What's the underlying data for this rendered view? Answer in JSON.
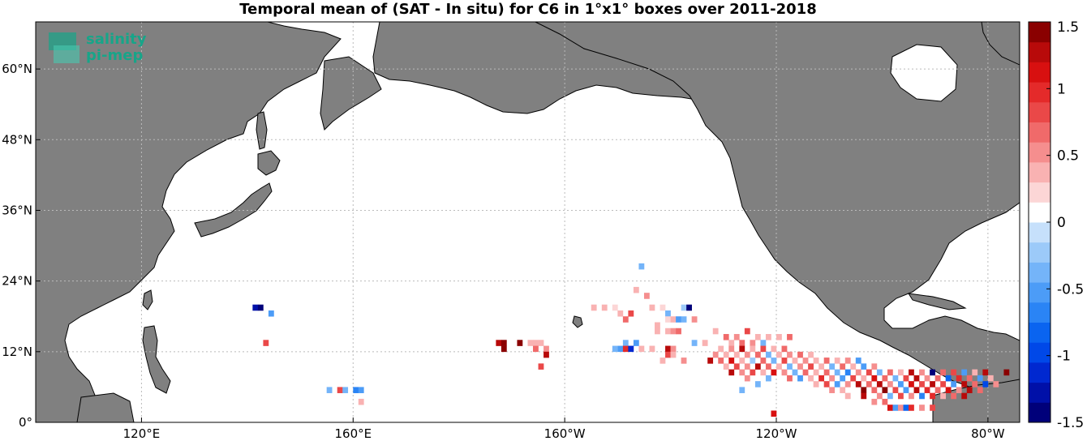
{
  "chart_data": {
    "type": "heatmap",
    "title": "Temporal mean of (SAT - In situ) for C6 in 1°x1° boxes over 2011-2018",
    "xlabel": "",
    "ylabel": "",
    "lon_range": [
      100,
      286
    ],
    "lat_range": [
      0,
      68
    ],
    "x_ticks": [
      {
        "lon": 120,
        "label": "120°E"
      },
      {
        "lon": 160,
        "label": "160°E"
      },
      {
        "lon": 200,
        "label": "160°W"
      },
      {
        "lon": 240,
        "label": "120°W"
      },
      {
        "lon": 280,
        "label": "80°W"
      }
    ],
    "y_ticks": [
      {
        "lat": 0,
        "label": "0°"
      },
      {
        "lat": 12,
        "label": "12°N"
      },
      {
        "lat": 24,
        "label": "24°N"
      },
      {
        "lat": 36,
        "label": "36°N"
      },
      {
        "lat": 48,
        "label": "48°N"
      },
      {
        "lat": 60,
        "label": "60°N"
      }
    ],
    "grid": true,
    "colorbar": {
      "min": -1.5,
      "max": 1.5,
      "levels": 30,
      "ticks": [
        "1.5",
        "1",
        "0.5",
        "0",
        "-0.5",
        "-1",
        "-1.5"
      ],
      "tick_values": [
        1.5,
        1,
        0.5,
        0,
        -0.5,
        -1,
        -1.5
      ],
      "colors": [
        "#00007a",
        "#0010a8",
        "#0028d0",
        "#0048e8",
        "#0a64f0",
        "#2a84f5",
        "#4c9cf7",
        "#74b4f9",
        "#9ccaf9",
        "#c6e0fb",
        "#ffffff",
        "#fcd6d6",
        "#f9b2b2",
        "#f58e8e",
        "#f06a6a",
        "#ea4848",
        "#e42a2a",
        "#d81010",
        "#b80a0a",
        "#8a0000"
      ]
    },
    "cells": [
      {
        "lon": 141,
        "lat": 19,
        "value": -1.3
      },
      {
        "lon": 142,
        "lat": 19,
        "value": -1.4
      },
      {
        "lon": 144,
        "lat": 18,
        "value": -0.6
      },
      {
        "lon": 143,
        "lat": 13,
        "value": 0.9
      },
      {
        "lon": 155,
        "lat": 5,
        "value": -0.4
      },
      {
        "lon": 157,
        "lat": 5,
        "value": 0.8
      },
      {
        "lon": 158,
        "lat": 5,
        "value": -0.3
      },
      {
        "lon": 160,
        "lat": 5,
        "value": -0.7
      },
      {
        "lon": 161,
        "lat": 5,
        "value": -0.6
      },
      {
        "lon": 161,
        "lat": 3,
        "value": 0.4
      },
      {
        "lon": 187,
        "lat": 13,
        "value": 1.2
      },
      {
        "lon": 188,
        "lat": 13,
        "value": 1.4
      },
      {
        "lon": 188,
        "lat": 12,
        "value": 1.5
      },
      {
        "lon": 191,
        "lat": 13,
        "value": 1.4
      },
      {
        "lon": 193,
        "lat": 13,
        "value": 0.3
      },
      {
        "lon": 194,
        "lat": 13,
        "value": 0.4
      },
      {
        "lon": 195,
        "lat": 13,
        "value": 0.3
      },
      {
        "lon": 194,
        "lat": 12,
        "value": 0.6
      },
      {
        "lon": 196,
        "lat": 12,
        "value": 0.5
      },
      {
        "lon": 196,
        "lat": 11,
        "value": 1.3
      },
      {
        "lon": 195,
        "lat": 9,
        "value": 0.8
      },
      {
        "lon": 205,
        "lat": 19,
        "value": 0.3
      },
      {
        "lon": 207,
        "lat": 19,
        "value": 0.4
      },
      {
        "lon": 209,
        "lat": 19,
        "value": 0.2
      },
      {
        "lon": 210,
        "lat": 18,
        "value": 0.3
      },
      {
        "lon": 211,
        "lat": 17,
        "value": 0.6
      },
      {
        "lon": 212,
        "lat": 18,
        "value": 0.8
      },
      {
        "lon": 213,
        "lat": 22,
        "value": 0.4
      },
      {
        "lon": 214,
        "lat": 26,
        "value": -0.3
      },
      {
        "lon": 215,
        "lat": 21,
        "value": 0.5
      },
      {
        "lon": 216,
        "lat": 19,
        "value": 0.3
      },
      {
        "lon": 218,
        "lat": 19,
        "value": 0.2
      },
      {
        "lon": 219,
        "lat": 18,
        "value": -0.4
      },
      {
        "lon": 222,
        "lat": 19,
        "value": -0.2
      },
      {
        "lon": 223,
        "lat": 19,
        "value": -1.4
      },
      {
        "lon": 217,
        "lat": 16,
        "value": 0.3
      },
      {
        "lon": 219,
        "lat": 17,
        "value": 0.2
      },
      {
        "lon": 220,
        "lat": 17,
        "value": 0.4
      },
      {
        "lon": 221,
        "lat": 17,
        "value": -0.5
      },
      {
        "lon": 222,
        "lat": 17,
        "value": -0.3
      },
      {
        "lon": 224,
        "lat": 17,
        "value": 0.5
      },
      {
        "lon": 217,
        "lat": 15,
        "value": 0.3
      },
      {
        "lon": 219,
        "lat": 15,
        "value": 0.4
      },
      {
        "lon": 220,
        "lat": 15,
        "value": 0.5
      },
      {
        "lon": 221,
        "lat": 15,
        "value": 0.6
      },
      {
        "lon": 213,
        "lat": 13,
        "value": -0.6
      },
      {
        "lon": 211,
        "lat": 13,
        "value": -0.4
      },
      {
        "lon": 210,
        "lat": 12,
        "value": -0.5
      },
      {
        "lon": 209,
        "lat": 12,
        "value": -0.3
      },
      {
        "lon": 211,
        "lat": 12,
        "value": 1.0
      },
      {
        "lon": 212,
        "lat": 12,
        "value": -1.1
      },
      {
        "lon": 214,
        "lat": 12,
        "value": 0.3
      },
      {
        "lon": 216,
        "lat": 12,
        "value": 0.4
      },
      {
        "lon": 219,
        "lat": 12,
        "value": 1.3
      },
      {
        "lon": 220,
        "lat": 12,
        "value": 0.5
      },
      {
        "lon": 224,
        "lat": 13,
        "value": -0.4
      },
      {
        "lon": 226,
        "lat": 13,
        "value": 0.4
      },
      {
        "lon": 219,
        "lat": 11,
        "value": 0.9
      },
      {
        "lon": 220,
        "lat": 11,
        "value": 0.3
      },
      {
        "lon": 218,
        "lat": 10,
        "value": 0.4
      },
      {
        "lon": 222,
        "lat": 10,
        "value": 0.5
      },
      {
        "lon": 228,
        "lat": 15,
        "value": 0.4
      },
      {
        "lon": 230,
        "lat": 14,
        "value": 0.6
      },
      {
        "lon": 232,
        "lat": 14,
        "value": 0.5
      },
      {
        "lon": 231,
        "lat": 13,
        "value": 0.3
      },
      {
        "lon": 233,
        "lat": 13,
        "value": 0.7
      },
      {
        "lon": 234,
        "lat": 15,
        "value": 0.9
      },
      {
        "lon": 236,
        "lat": 14,
        "value": 0.4
      },
      {
        "lon": 235,
        "lat": 13,
        "value": 0.5
      },
      {
        "lon": 237,
        "lat": 13,
        "value": -0.3
      },
      {
        "lon": 238,
        "lat": 14,
        "value": 0.3
      },
      {
        "lon": 240,
        "lat": 14,
        "value": 0.4
      },
      {
        "lon": 242,
        "lat": 14,
        "value": 0.6
      },
      {
        "lon": 229,
        "lat": 12,
        "value": 0.4
      },
      {
        "lon": 231,
        "lat": 12,
        "value": 0.5
      },
      {
        "lon": 233,
        "lat": 12,
        "value": 1.2
      },
      {
        "lon": 235,
        "lat": 12,
        "value": 0.4
      },
      {
        "lon": 237,
        "lat": 12,
        "value": 0.8
      },
      {
        "lon": 239,
        "lat": 12,
        "value": 0.3
      },
      {
        "lon": 241,
        "lat": 12,
        "value": 0.6
      },
      {
        "lon": 228,
        "lat": 11,
        "value": 0.5
      },
      {
        "lon": 230,
        "lat": 11,
        "value": 0.4
      },
      {
        "lon": 232,
        "lat": 11,
        "value": 0.3
      },
      {
        "lon": 234,
        "lat": 11,
        "value": 0.5
      },
      {
        "lon": 236,
        "lat": 11,
        "value": 0.7
      },
      {
        "lon": 238,
        "lat": 11,
        "value": -0.3
      },
      {
        "lon": 240,
        "lat": 11,
        "value": 0.4
      },
      {
        "lon": 242,
        "lat": 11,
        "value": 0.5
      },
      {
        "lon": 244,
        "lat": 11,
        "value": 0.6
      },
      {
        "lon": 246,
        "lat": 11,
        "value": 0.3
      },
      {
        "lon": 227,
        "lat": 10,
        "value": 1.3
      },
      {
        "lon": 229,
        "lat": 10,
        "value": 0.6
      },
      {
        "lon": 231,
        "lat": 10,
        "value": 1.1
      },
      {
        "lon": 233,
        "lat": 10,
        "value": 0.4
      },
      {
        "lon": 235,
        "lat": 10,
        "value": -0.2
      },
      {
        "lon": 237,
        "lat": 10,
        "value": 0.6
      },
      {
        "lon": 239,
        "lat": 10,
        "value": -0.4
      },
      {
        "lon": 241,
        "lat": 10,
        "value": 0.9
      },
      {
        "lon": 243,
        "lat": 10,
        "value": 0.4
      },
      {
        "lon": 245,
        "lat": 10,
        "value": 0.5
      },
      {
        "lon": 247,
        "lat": 10,
        "value": 0.3
      },
      {
        "lon": 249,
        "lat": 10,
        "value": 0.6
      },
      {
        "lon": 251,
        "lat": 10,
        "value": 0.4
      },
      {
        "lon": 253,
        "lat": 10,
        "value": 0.5
      },
      {
        "lon": 255,
        "lat": 10,
        "value": -0.5
      },
      {
        "lon": 230,
        "lat": 9,
        "value": 0.4
      },
      {
        "lon": 232,
        "lat": 9,
        "value": 0.9
      },
      {
        "lon": 234,
        "lat": 9,
        "value": 0.5
      },
      {
        "lon": 236,
        "lat": 9,
        "value": 1.2
      },
      {
        "lon": 238,
        "lat": 9,
        "value": 0.6
      },
      {
        "lon": 240,
        "lat": 9,
        "value": 0.4
      },
      {
        "lon": 242,
        "lat": 9,
        "value": -0.3
      },
      {
        "lon": 244,
        "lat": 9,
        "value": 0.5
      },
      {
        "lon": 246,
        "lat": 9,
        "value": 0.8
      },
      {
        "lon": 248,
        "lat": 9,
        "value": 0.3
      },
      {
        "lon": 250,
        "lat": 9,
        "value": -0.4
      },
      {
        "lon": 252,
        "lat": 9,
        "value": 0.6
      },
      {
        "lon": 254,
        "lat": 9,
        "value": 0.4
      },
      {
        "lon": 256,
        "lat": 9,
        "value": -0.6
      },
      {
        "lon": 258,
        "lat": 9,
        "value": 0.5
      },
      {
        "lon": 231,
        "lat": 8,
        "value": 1.3
      },
      {
        "lon": 233,
        "lat": 8,
        "value": 0.5
      },
      {
        "lon": 235,
        "lat": 8,
        "value": 0.8
      },
      {
        "lon": 237,
        "lat": 8,
        "value": 0.4
      },
      {
        "lon": 239,
        "lat": 8,
        "value": 1.1
      },
      {
        "lon": 241,
        "lat": 8,
        "value": 0.5
      },
      {
        "lon": 243,
        "lat": 8,
        "value": -0.4
      },
      {
        "lon": 245,
        "lat": 8,
        "value": 0.6
      },
      {
        "lon": 247,
        "lat": 8,
        "value": 0.4
      },
      {
        "lon": 249,
        "lat": 8,
        "value": 0.7
      },
      {
        "lon": 251,
        "lat": 8,
        "value": -0.3
      },
      {
        "lon": 253,
        "lat": 8,
        "value": -0.7
      },
      {
        "lon": 255,
        "lat": 8,
        "value": 0.5
      },
      {
        "lon": 257,
        "lat": 8,
        "value": 0.9
      },
      {
        "lon": 259,
        "lat": 8,
        "value": -0.4
      },
      {
        "lon": 261,
        "lat": 8,
        "value": 0.6
      },
      {
        "lon": 263,
        "lat": 8,
        "value": 0.4
      },
      {
        "lon": 265,
        "lat": 8,
        "value": 1.2
      },
      {
        "lon": 267,
        "lat": 8,
        "value": 0.5
      },
      {
        "lon": 269,
        "lat": 8,
        "value": -1.4
      },
      {
        "lon": 271,
        "lat": 8,
        "value": 0.6
      },
      {
        "lon": 273,
        "lat": 8,
        "value": 0.8
      },
      {
        "lon": 275,
        "lat": 8,
        "value": -0.5
      },
      {
        "lon": 277,
        "lat": 8,
        "value": 0.4
      },
      {
        "lon": 279,
        "lat": 8,
        "value": 1.3
      },
      {
        "lon": 283,
        "lat": 8,
        "value": 1.5
      },
      {
        "lon": 234,
        "lat": 7,
        "value": 0.5
      },
      {
        "lon": 238,
        "lat": 7,
        "value": -0.3
      },
      {
        "lon": 242,
        "lat": 7,
        "value": 0.6
      },
      {
        "lon": 244,
        "lat": 7,
        "value": -0.5
      },
      {
        "lon": 246,
        "lat": 7,
        "value": 0.4
      },
      {
        "lon": 248,
        "lat": 7,
        "value": 1.0
      },
      {
        "lon": 250,
        "lat": 7,
        "value": 0.5
      },
      {
        "lon": 252,
        "lat": 7,
        "value": -0.6
      },
      {
        "lon": 254,
        "lat": 7,
        "value": 0.8
      },
      {
        "lon": 256,
        "lat": 7,
        "value": 0.4
      },
      {
        "lon": 258,
        "lat": 7,
        "value": 1.1
      },
      {
        "lon": 260,
        "lat": 7,
        "value": 0.6
      },
      {
        "lon": 262,
        "lat": 7,
        "value": -0.4
      },
      {
        "lon": 264,
        "lat": 7,
        "value": 0.9
      },
      {
        "lon": 266,
        "lat": 7,
        "value": 1.2
      },
      {
        "lon": 268,
        "lat": 7,
        "value": 0.5
      },
      {
        "lon": 270,
        "lat": 7,
        "value": 0.7
      },
      {
        "lon": 272,
        "lat": 7,
        "value": -0.8
      },
      {
        "lon": 274,
        "lat": 7,
        "value": 1.0
      },
      {
        "lon": 276,
        "lat": 7,
        "value": 0.6
      },
      {
        "lon": 278,
        "lat": 7,
        "value": -0.5
      },
      {
        "lon": 280,
        "lat": 7,
        "value": 0.4
      },
      {
        "lon": 236,
        "lat": 6,
        "value": -0.3
      },
      {
        "lon": 247,
        "lat": 6,
        "value": 0.4
      },
      {
        "lon": 249,
        "lat": 6,
        "value": 0.8
      },
      {
        "lon": 251,
        "lat": 6,
        "value": -0.5
      },
      {
        "lon": 253,
        "lat": 6,
        "value": 0.5
      },
      {
        "lon": 255,
        "lat": 6,
        "value": 1.2
      },
      {
        "lon": 257,
        "lat": 6,
        "value": 0.6
      },
      {
        "lon": 259,
        "lat": 6,
        "value": 1.3
      },
      {
        "lon": 261,
        "lat": 6,
        "value": 0.5
      },
      {
        "lon": 263,
        "lat": 6,
        "value": -0.6
      },
      {
        "lon": 265,
        "lat": 6,
        "value": 1.1
      },
      {
        "lon": 267,
        "lat": 6,
        "value": 0.9
      },
      {
        "lon": 269,
        "lat": 6,
        "value": 1.2
      },
      {
        "lon": 271,
        "lat": 6,
        "value": 0.8
      },
      {
        "lon": 273,
        "lat": 6,
        "value": -0.6
      },
      {
        "lon": 275,
        "lat": 6,
        "value": 1.3
      },
      {
        "lon": 277,
        "lat": 6,
        "value": 0.7
      },
      {
        "lon": 279,
        "lat": 6,
        "value": -0.9
      },
      {
        "lon": 281,
        "lat": 6,
        "value": 0.5
      },
      {
        "lon": 233,
        "lat": 5,
        "value": -0.3
      },
      {
        "lon": 250,
        "lat": 5,
        "value": 0.5
      },
      {
        "lon": 252,
        "lat": 5,
        "value": 0.4
      },
      {
        "lon": 256,
        "lat": 5,
        "value": 1.4
      },
      {
        "lon": 258,
        "lat": 5,
        "value": 0.6
      },
      {
        "lon": 260,
        "lat": 5,
        "value": 1.5
      },
      {
        "lon": 262,
        "lat": 5,
        "value": 0.9
      },
      {
        "lon": 264,
        "lat": 5,
        "value": -0.5
      },
      {
        "lon": 266,
        "lat": 5,
        "value": 1.2
      },
      {
        "lon": 268,
        "lat": 5,
        "value": 1.0
      },
      {
        "lon": 270,
        "lat": 5,
        "value": 0.7
      },
      {
        "lon": 272,
        "lat": 5,
        "value": 1.1
      },
      {
        "lon": 274,
        "lat": 5,
        "value": 0.5
      },
      {
        "lon": 276,
        "lat": 5,
        "value": 1.2
      },
      {
        "lon": 278,
        "lat": 5,
        "value": 0.6
      },
      {
        "lon": 253,
        "lat": 4,
        "value": 0.4
      },
      {
        "lon": 256,
        "lat": 4,
        "value": 1.3
      },
      {
        "lon": 259,
        "lat": 4,
        "value": 0.5
      },
      {
        "lon": 261,
        "lat": 4,
        "value": -0.4
      },
      {
        "lon": 263,
        "lat": 4,
        "value": 0.8
      },
      {
        "lon": 265,
        "lat": 4,
        "value": 0.5
      },
      {
        "lon": 267,
        "lat": 4,
        "value": -0.7
      },
      {
        "lon": 269,
        "lat": 4,
        "value": 1.0
      },
      {
        "lon": 271,
        "lat": 4,
        "value": 0.4
      },
      {
        "lon": 273,
        "lat": 4,
        "value": 0.6
      },
      {
        "lon": 275,
        "lat": 4,
        "value": 1.2
      },
      {
        "lon": 258,
        "lat": 3,
        "value": 0.5
      },
      {
        "lon": 260,
        "lat": 3,
        "value": 0.7
      },
      {
        "lon": 261,
        "lat": 2,
        "value": 1.1
      },
      {
        "lon": 262,
        "lat": 2,
        "value": -0.6
      },
      {
        "lon": 263,
        "lat": 2,
        "value": 0.5
      },
      {
        "lon": 264,
        "lat": 2,
        "value": -0.8
      },
      {
        "lon": 265,
        "lat": 2,
        "value": 1.0
      },
      {
        "lon": 267,
        "lat": 2,
        "value": 0.5
      },
      {
        "lon": 269,
        "lat": 2,
        "value": 0.8
      },
      {
        "lon": 239,
        "lat": 1,
        "value": 1.1
      }
    ]
  }
}
